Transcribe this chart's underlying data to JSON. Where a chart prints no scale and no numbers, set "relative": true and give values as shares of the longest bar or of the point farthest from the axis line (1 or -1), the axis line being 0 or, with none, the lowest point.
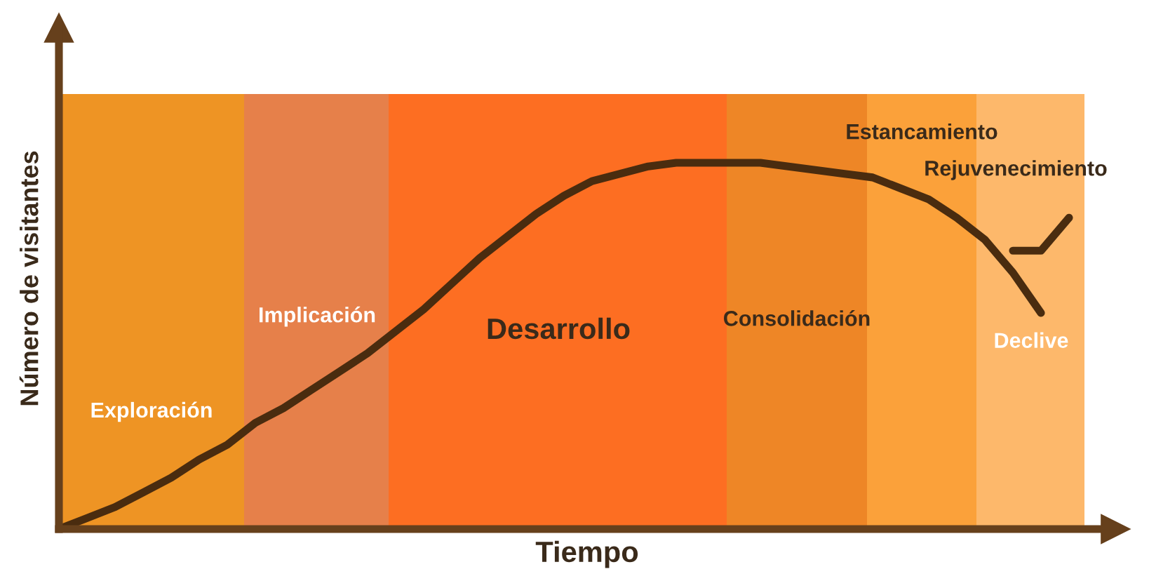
{
  "chart_data": {
    "type": "line",
    "relative": true,
    "xlabel": "Tiempo",
    "ylabel": "Número de visitantes",
    "categories": [
      null,
      null,
      null,
      null,
      null,
      null,
      null,
      null,
      null,
      null,
      null,
      null,
      null,
      null,
      null,
      null,
      null,
      null,
      null,
      null,
      null,
      null,
      null,
      null,
      null,
      null,
      null,
      null,
      null,
      null,
      null,
      null,
      null,
      null,
      null,
      null,
      null
    ],
    "series": [
      {
        "color": "#4a2c0f",
        "values": [
          0,
          0.03,
          0.06,
          0.1,
          0.14,
          0.19,
          0.23,
          0.29,
          0.33,
          0.38,
          0.43,
          0.48,
          0.54,
          0.6,
          0.67,
          0.74,
          0.8,
          0.86,
          0.91,
          0.95,
          0.97,
          0.99,
          1.0,
          1.0,
          1.0,
          1.0,
          0.99,
          0.98,
          0.97,
          0.96,
          0.93,
          0.9,
          0.85,
          0.79,
          0.7,
          0.59,
          null
        ]
      },
      {
        "color": "#4a2c0f",
        "values": [
          null,
          null,
          null,
          null,
          null,
          null,
          null,
          null,
          null,
          null,
          null,
          null,
          null,
          null,
          null,
          null,
          null,
          null,
          null,
          null,
          null,
          null,
          null,
          null,
          null,
          null,
          null,
          null,
          null,
          null,
          null,
          null,
          null,
          null,
          0.76,
          0.76,
          0.85
        ]
      }
    ],
    "annotations": [
      "Exploración",
      "Implicación",
      "Desarrollo",
      "Consolidación",
      "Estancamiento",
      "Rejuvenecimiento",
      "Declive"
    ],
    "line_style": "solid"
  }
}
